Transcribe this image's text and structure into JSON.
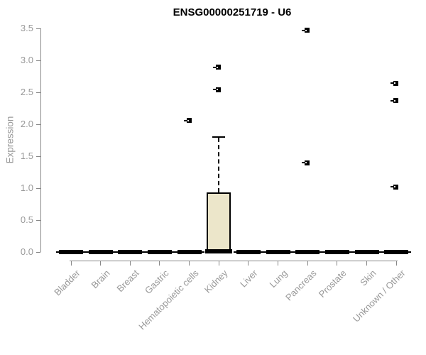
{
  "title": "ENSG00000251719 - U6",
  "chart_data": {
    "type": "boxplot",
    "title": "ENSG00000251719 - U6",
    "xlabel": "",
    "ylabel": "Expression",
    "ylim": [
      0,
      3.5
    ],
    "y_ticks": [
      "0.0",
      "0.5",
      "1.0",
      "1.5",
      "2.0",
      "2.5",
      "3.0",
      "3.5"
    ],
    "grid": false,
    "legend": "none",
    "categories": [
      "Bladder",
      "Brain",
      "Breast",
      "Gastric",
      "Hematopoietic cells",
      "Kidney",
      "Liver",
      "Lung",
      "Pancreas",
      "Prostate",
      "Skin",
      "Unknown / Other"
    ],
    "series": [
      {
        "category": "Bladder",
        "q1": 0,
        "median": 0,
        "q3": 0,
        "whisker_low": 0,
        "whisker_high": 0,
        "outliers": []
      },
      {
        "category": "Brain",
        "q1": 0,
        "median": 0,
        "q3": 0,
        "whisker_low": 0,
        "whisker_high": 0,
        "outliers": []
      },
      {
        "category": "Breast",
        "q1": 0,
        "median": 0,
        "q3": 0,
        "whisker_low": 0,
        "whisker_high": 0,
        "outliers": []
      },
      {
        "category": "Gastric",
        "q1": 0,
        "median": 0,
        "q3": 0,
        "whisker_low": 0,
        "whisker_high": 0,
        "outliers": []
      },
      {
        "category": "Hematopoietic cells",
        "q1": 0,
        "median": 0,
        "q3": 0,
        "whisker_low": 0,
        "whisker_high": 0,
        "outliers": [
          2.06
        ]
      },
      {
        "category": "Kidney",
        "q1": 0.02,
        "median": 0.02,
        "q3": 0.93,
        "whisker_low": 0.02,
        "whisker_high": 1.8,
        "outliers": [
          2.54,
          2.89
        ]
      },
      {
        "category": "Liver",
        "q1": 0,
        "median": 0,
        "q3": 0,
        "whisker_low": 0,
        "whisker_high": 0,
        "outliers": []
      },
      {
        "category": "Lung",
        "q1": 0,
        "median": 0,
        "q3": 0,
        "whisker_low": 0,
        "whisker_high": 0,
        "outliers": []
      },
      {
        "category": "Pancreas",
        "q1": 0,
        "median": 0,
        "q3": 0,
        "whisker_low": 0,
        "whisker_high": 0,
        "outliers": [
          1.4,
          3.47
        ]
      },
      {
        "category": "Prostate",
        "q1": 0,
        "median": 0,
        "q3": 0,
        "whisker_low": 0,
        "whisker_high": 0,
        "outliers": []
      },
      {
        "category": "Skin",
        "q1": 0,
        "median": 0,
        "q3": 0,
        "whisker_low": 0,
        "whisker_high": 0,
        "outliers": []
      },
      {
        "category": "Unknown / Other",
        "q1": 0,
        "median": 0,
        "q3": 0,
        "whisker_low": 0,
        "whisker_high": 0,
        "outliers": [
          1.02,
          2.37,
          2.64
        ]
      }
    ],
    "colors": {
      "box_fill": "#ECE6CA",
      "box_border": "#000000",
      "axis": "#888888",
      "tick_text": "#999999",
      "title_text": "#000000",
      "outlier": "#000000",
      "background": "#ffffff"
    }
  }
}
